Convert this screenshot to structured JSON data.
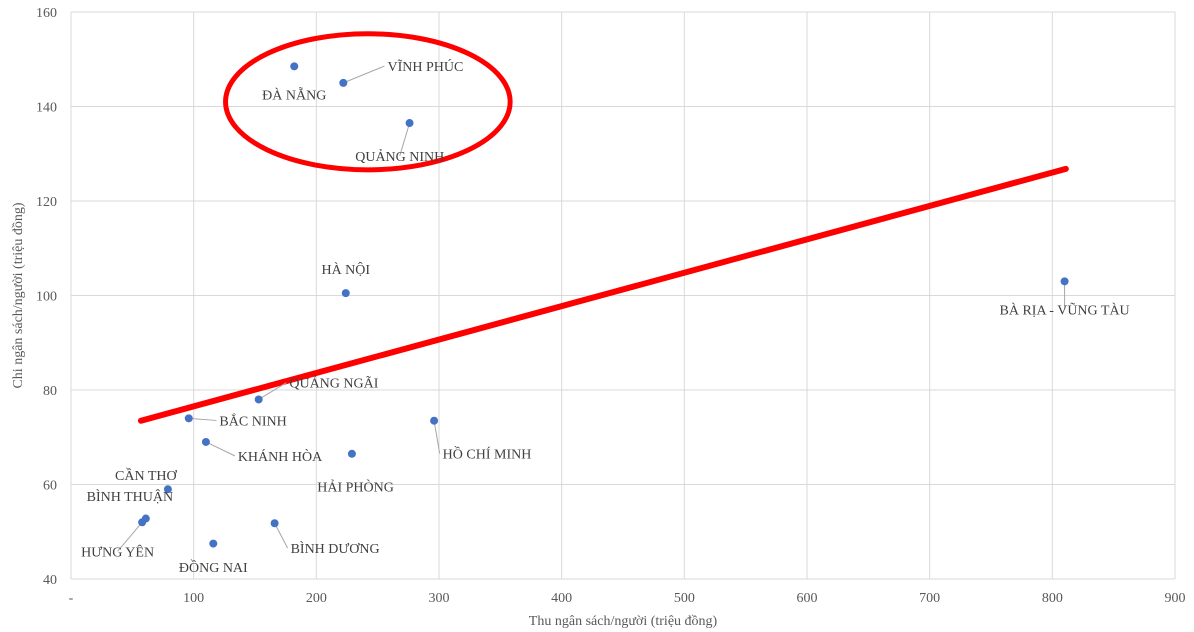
{
  "chart_data": {
    "type": "scatter",
    "title": "",
    "xlabel": "Thu ngân sách/người (triệu đồng)",
    "ylabel": "Chi ngân sách/người (triệu đồng)",
    "xlim": [
      0,
      900
    ],
    "ylim": [
      40,
      160
    ],
    "x_ticks": [
      {
        "value": 0,
        "label": "-"
      },
      {
        "value": 100,
        "label": "100"
      },
      {
        "value": 200,
        "label": "200"
      },
      {
        "value": 300,
        "label": "300"
      },
      {
        "value": 400,
        "label": "400"
      },
      {
        "value": 500,
        "label": "500"
      },
      {
        "value": 600,
        "label": "600"
      },
      {
        "value": 700,
        "label": "700"
      },
      {
        "value": 800,
        "label": "800"
      },
      {
        "value": 900,
        "label": "900"
      }
    ],
    "y_ticks": [
      {
        "value": 40,
        "label": "40"
      },
      {
        "value": 60,
        "label": "60"
      },
      {
        "value": 80,
        "label": "80"
      },
      {
        "value": 100,
        "label": "100"
      },
      {
        "value": 120,
        "label": "120"
      },
      {
        "value": 140,
        "label": "140"
      },
      {
        "value": 160,
        "label": "160"
      }
    ],
    "grid": true,
    "marker_color": "#4472C4",
    "trendline": {
      "color": "#FF0000",
      "from": [
        57,
        73.5
      ],
      "to": [
        811,
        126.8
      ]
    },
    "highlight_ellipse": {
      "color": "#FF0000",
      "center": [
        242,
        141
      ],
      "rx": 116,
      "ry": 14.4
    },
    "points": [
      {
        "label": "ĐÀ NẴNG",
        "x": 182,
        "y": 148.5,
        "lx": 182,
        "ly": 141.5,
        "anchor": "middle"
      },
      {
        "label": "VĨNH PHÚC",
        "x": 222,
        "y": 145,
        "lx": 258,
        "ly": 147.5,
        "anchor": "start",
        "leader": true
      },
      {
        "label": "QUẢNG NINH",
        "x": 276,
        "y": 136.5,
        "lx": 268,
        "ly": 128.5,
        "anchor": "middle",
        "leader": true
      },
      {
        "label": "HÀ NỘI",
        "x": 224,
        "y": 100.5,
        "lx": 224,
        "ly": 104.5,
        "anchor": "middle"
      },
      {
        "label": "BÀ RỊA - VŨNG TÀU",
        "x": 810,
        "y": 103,
        "lx": 810,
        "ly": 96,
        "anchor": "middle",
        "leader": true
      },
      {
        "label": "QUẢNG NGÃI",
        "x": 153,
        "y": 78,
        "lx": 178,
        "ly": 80.5,
        "anchor": "start",
        "leader": true
      },
      {
        "label": "BẮC NINH",
        "x": 96,
        "y": 74,
        "lx": 121,
        "ly": 72.5,
        "anchor": "start",
        "leader": true
      },
      {
        "label": "HỒ CHÍ MINH",
        "x": 296,
        "y": 73.5,
        "lx": 303,
        "ly": 65.5,
        "anchor": "start",
        "leader": true
      },
      {
        "label": "KHÁNH HÒA",
        "x": 110,
        "y": 69,
        "lx": 136,
        "ly": 65,
        "anchor": "start",
        "leader": true
      },
      {
        "label": "HẢI PHÒNG",
        "x": 229,
        "y": 66.5,
        "lx": 232,
        "ly": 58.5,
        "anchor": "middle"
      },
      {
        "label": "CẦN THƠ",
        "x": 79,
        "y": 59,
        "lx": 61,
        "ly": 61,
        "anchor": "middle"
      },
      {
        "label": "BÌNH THUẬN",
        "x": 61,
        "y": 52.8,
        "lx": 48,
        "ly": 56.5,
        "anchor": "middle"
      },
      {
        "label": "HƯNG YÊN",
        "x": 58,
        "y": 52,
        "lx": 38,
        "ly": 44.8,
        "anchor": "middle",
        "leader": true
      },
      {
        "label": "ĐỒNG NAI",
        "x": 116,
        "y": 47.5,
        "lx": 116,
        "ly": 41.5,
        "anchor": "middle"
      },
      {
        "label": "BÌNH DƯƠNG",
        "x": 166,
        "y": 51.8,
        "lx": 179,
        "ly": 45.5,
        "anchor": "start",
        "leader": true
      }
    ]
  }
}
